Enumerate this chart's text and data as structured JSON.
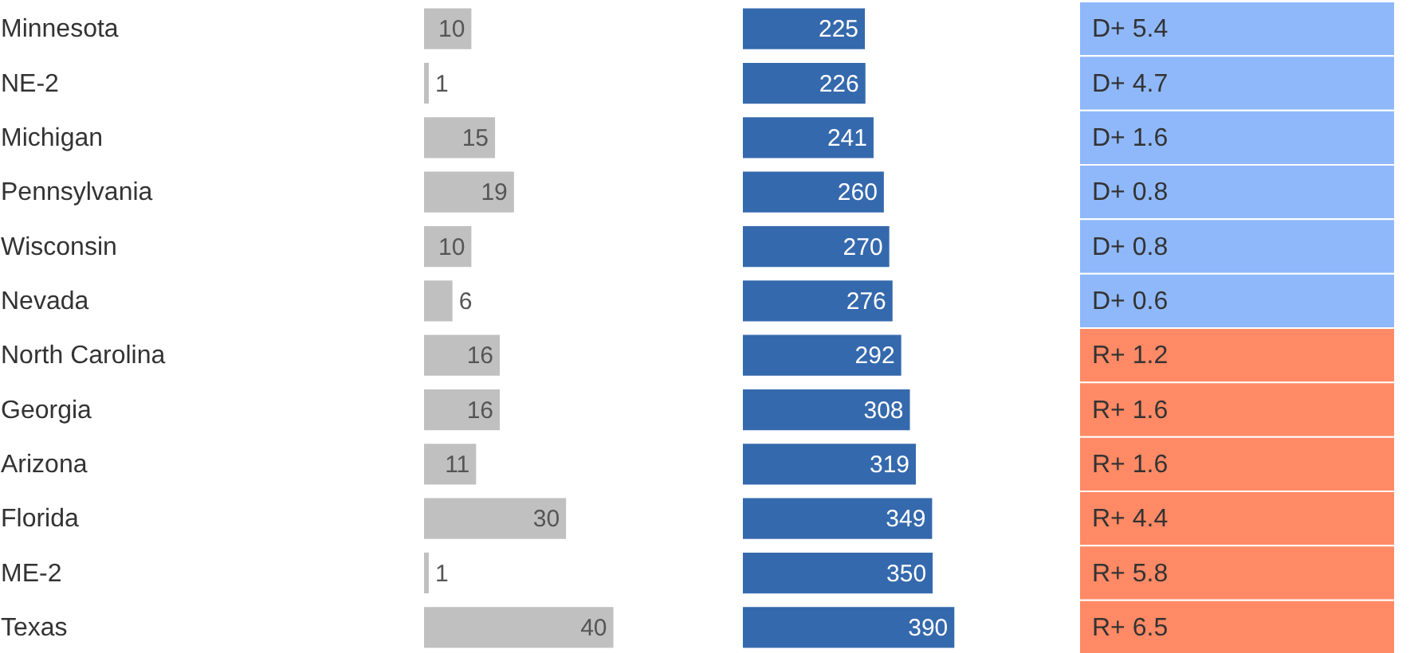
{
  "chart_data": [
    {
      "type": "bar",
      "orientation": "horizontal",
      "categories": [
        "Minnesota",
        "NE-2",
        "Michigan",
        "Pennsylvania",
        "Wisconsin",
        "Nevada",
        "North Carolina",
        "Georgia",
        "Arizona",
        "Florida",
        "ME-2",
        "Texas"
      ],
      "values": [
        10,
        1,
        15,
        19,
        10,
        6,
        16,
        16,
        11,
        30,
        1,
        40
      ],
      "color": "#c0c0c0",
      "data_labels": true,
      "tick_labels": "y"
    },
    {
      "type": "bar",
      "orientation": "horizontal",
      "categories": [
        null,
        null,
        null,
        null,
        null,
        null,
        null,
        null,
        null,
        null,
        null,
        null
      ],
      "values": [
        225,
        226,
        241,
        260,
        270,
        276,
        292,
        308,
        319,
        349,
        350,
        390
      ],
      "color": "#3569ad",
      "data_labels": true,
      "tick_labels": false
    },
    {
      "type": "other",
      "annotations": [
        "D+ 5.4",
        "D+ 4.7",
        "D+ 1.6",
        "D+ 0.8",
        "D+ 0.8",
        "D+ 0.6",
        "R+ 1.2",
        "R+ 1.6",
        "R+ 1.6",
        "R+ 4.4",
        "R+ 5.8",
        "R+ 6.5"
      ],
      "colors": [
        "#8fb8fa",
        "#8fb8fa",
        "#8fb8fa",
        "#8fb8fa",
        "#8fb8fa",
        "#8fb8fa",
        "#ff8a65",
        "#ff8a65",
        "#ff8a65",
        "#ff8a65",
        "#ff8a65",
        "#ff8a65"
      ]
    }
  ]
}
